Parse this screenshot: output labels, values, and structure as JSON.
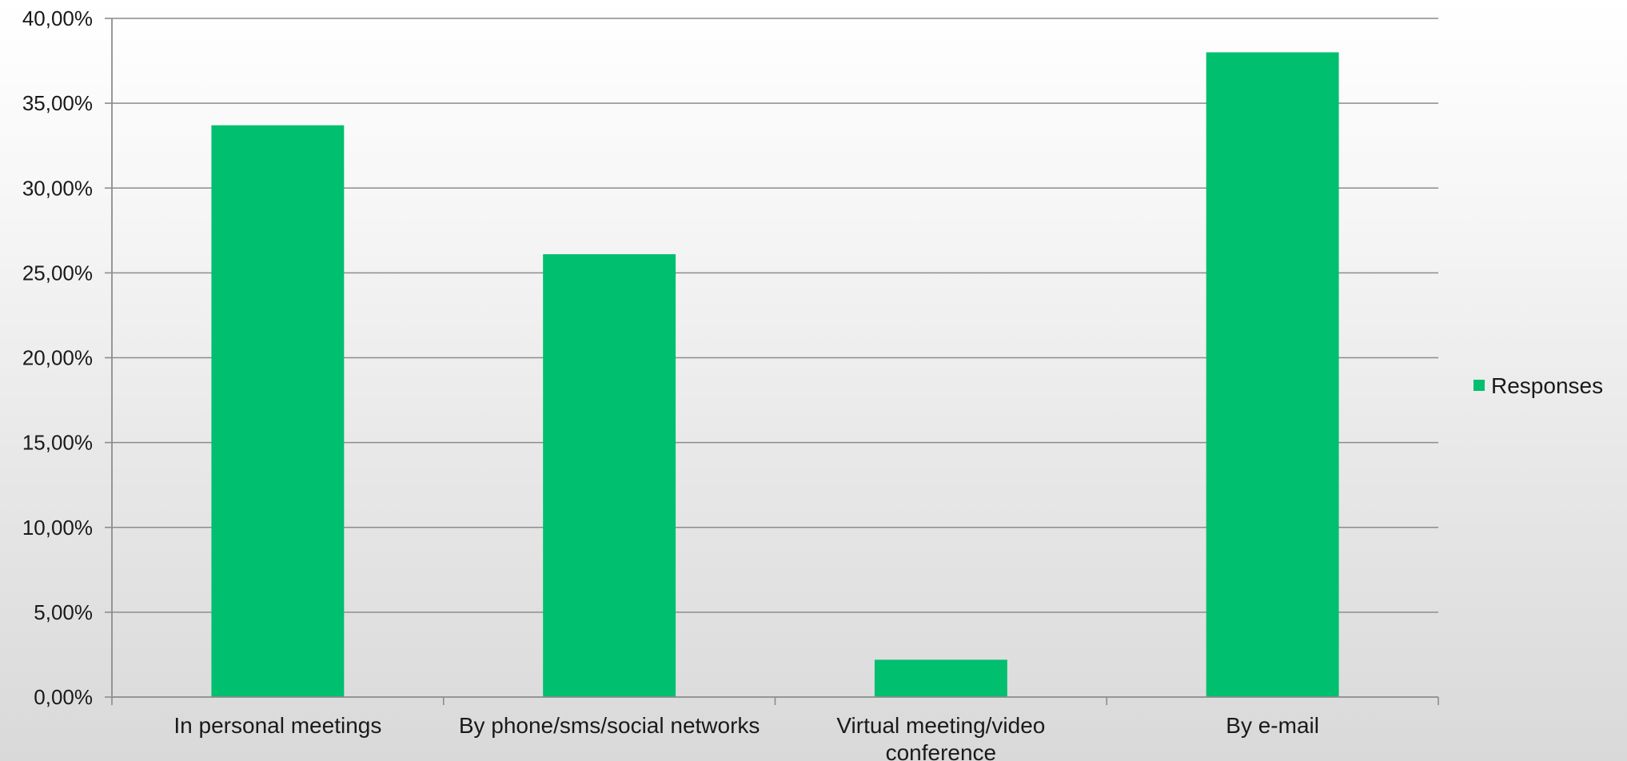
{
  "chart_data": {
    "type": "bar",
    "categories": [
      "In personal meetings",
      "By phone/sms/social networks",
      "Virtual meeting/video conference",
      "By e-mail"
    ],
    "category_label_lines": [
      [
        "In personal meetings"
      ],
      [
        "By phone/sms/social networks"
      ],
      [
        "Virtual meeting/video",
        "conference"
      ],
      [
        "By e-mail"
      ]
    ],
    "series": [
      {
        "name": "Responses",
        "values": [
          33.7,
          26.1,
          2.2,
          38.0
        ],
        "color": "#00bf6f"
      }
    ],
    "ylim": [
      0,
      40
    ],
    "ytick_values": [
      0,
      5,
      10,
      15,
      20,
      25,
      30,
      35,
      40
    ],
    "ytick_labels": [
      "0,00%",
      "5,00%",
      "10,00%",
      "15,00%",
      "20,00%",
      "25,00%",
      "30,00%",
      "35,00%",
      "40,00%"
    ],
    "grid": true,
    "legend_position": "right",
    "title": "",
    "xlabel": "",
    "ylabel": ""
  },
  "colors": {
    "bar": "#00bf6f",
    "gridline": "#8c8c8c",
    "axis": "#8c8c8c",
    "text": "#1a1a1a"
  }
}
